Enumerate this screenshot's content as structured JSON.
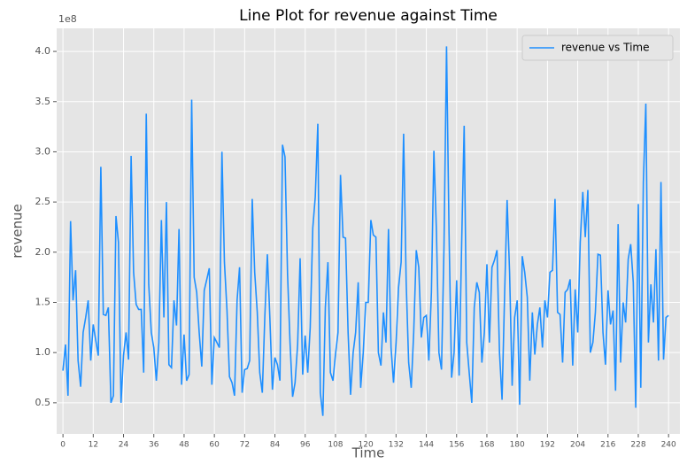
{
  "chart_data": {
    "type": "line",
    "title": "Line Plot for revenue against Time",
    "xlabel": "Time",
    "ylabel": "revenue",
    "y_offset_label": "1e8",
    "x": [
      0,
      1,
      2,
      3,
      4,
      5,
      6,
      7,
      8,
      9,
      10,
      11,
      12,
      13,
      14,
      15,
      16,
      17,
      18,
      19,
      20,
      21,
      22,
      23,
      24,
      25,
      26,
      27,
      28,
      29,
      30,
      31,
      32,
      33,
      34,
      35,
      36,
      37,
      38,
      39,
      40,
      41,
      42,
      43,
      44,
      45,
      46,
      47,
      48,
      49,
      50,
      51,
      52,
      53,
      54,
      55,
      56,
      57,
      58,
      59,
      60,
      61,
      62,
      63,
      64,
      65,
      66,
      67,
      68,
      69,
      70,
      71,
      72,
      73,
      74,
      75,
      76,
      77,
      78,
      79,
      80,
      81,
      82,
      83,
      84,
      85,
      86,
      87,
      88,
      89,
      90,
      91,
      92,
      93,
      94,
      95,
      96,
      97,
      98,
      99,
      100,
      101,
      102,
      103,
      104,
      105,
      106,
      107,
      108,
      109,
      110,
      111,
      112,
      113,
      114,
      115,
      116,
      117,
      118,
      119,
      120,
      121,
      122,
      123,
      124,
      125,
      126,
      127,
      128,
      129,
      130,
      131,
      132,
      133,
      134,
      135,
      136,
      137,
      138,
      139,
      140,
      141,
      142,
      143,
      144,
      145,
      146,
      147,
      148,
      149,
      150,
      151,
      152,
      153,
      154,
      155,
      156,
      157,
      158,
      159,
      160,
      161,
      162,
      163,
      164,
      165,
      166,
      167,
      168,
      169,
      170,
      171,
      172,
      173,
      174,
      175,
      176,
      177,
      178,
      179,
      180,
      181,
      182,
      183,
      184,
      185,
      186,
      187,
      188,
      189,
      190,
      191,
      192,
      193,
      194,
      195,
      196,
      197,
      198,
      199,
      200,
      201,
      202,
      203,
      204,
      205,
      206,
      207,
      208,
      209,
      210,
      211,
      212,
      213,
      214,
      215,
      216,
      217,
      218,
      219,
      220,
      221,
      222,
      223,
      224,
      225,
      226,
      227,
      228,
      229,
      230,
      231,
      232,
      233,
      234,
      235,
      236,
      237,
      238,
      239,
      240
    ],
    "series": [
      {
        "name": "revenue vs Time",
        "color": "#1e8fff",
        "values": [
          0.82,
          1.08,
          0.57,
          2.31,
          1.52,
          1.82,
          0.92,
          0.66,
          1.2,
          1.35,
          1.52,
          0.92,
          1.28,
          1.12,
          0.97,
          2.85,
          1.38,
          1.37,
          1.45,
          0.5,
          0.57,
          2.36,
          2.1,
          0.5,
          0.97,
          1.2,
          0.93,
          2.96,
          1.8,
          1.48,
          1.43,
          1.43,
          0.8,
          3.38,
          1.68,
          1.2,
          1.05,
          0.72,
          1.1,
          2.32,
          1.35,
          2.5,
          0.88,
          0.85,
          1.52,
          1.27,
          2.23,
          0.68,
          1.18,
          0.72,
          0.78,
          3.52,
          1.75,
          1.6,
          1.2,
          0.86,
          1.62,
          1.73,
          1.84,
          0.68,
          1.15,
          1.1,
          1.05,
          3.0,
          1.9,
          1.42,
          0.76,
          0.7,
          0.57,
          1.52,
          1.85,
          0.6,
          0.83,
          0.84,
          0.92,
          2.53,
          1.8,
          1.4,
          0.8,
          0.6,
          1.35,
          1.98,
          1.35,
          0.63,
          0.95,
          0.88,
          0.72,
          3.07,
          2.95,
          1.78,
          1.1,
          0.56,
          0.7,
          1.08,
          1.94,
          0.78,
          1.17,
          0.8,
          1.25,
          2.24,
          2.55,
          3.28,
          0.6,
          0.37,
          1.45,
          1.9,
          0.8,
          0.72,
          0.98,
          1.2,
          2.77,
          2.15,
          2.14,
          1.2,
          0.58,
          1.0,
          1.2,
          1.7,
          0.65,
          1.0,
          1.5,
          1.5,
          2.32,
          2.17,
          2.15,
          1.0,
          0.87,
          1.4,
          1.1,
          2.23,
          1.05,
          0.7,
          1.1,
          1.65,
          1.9,
          3.18,
          1.7,
          0.9,
          0.65,
          1.2,
          2.02,
          1.85,
          1.15,
          1.35,
          1.37,
          0.92,
          1.6,
          3.01,
          2.2,
          1.0,
          0.83,
          2.05,
          4.05,
          2.2,
          0.75,
          1.0,
          1.72,
          0.77,
          2.1,
          3.26,
          1.1,
          0.8,
          0.5,
          1.45,
          1.7,
          1.6,
          0.9,
          1.2,
          1.88,
          1.1,
          1.85,
          1.92,
          2.02,
          1.0,
          0.53,
          1.55,
          2.52,
          1.8,
          0.67,
          1.35,
          1.52,
          0.48,
          1.96,
          1.8,
          1.55,
          0.72,
          1.4,
          0.98,
          1.28,
          1.45,
          1.05,
          1.52,
          1.35,
          1.8,
          1.82,
          2.53,
          1.4,
          1.38,
          0.9,
          1.6,
          1.63,
          1.73,
          0.87,
          1.63,
          1.2,
          2.1,
          2.6,
          2.15,
          2.62,
          1.0,
          1.1,
          1.4,
          1.98,
          1.97,
          1.2,
          0.88,
          1.62,
          1.28,
          1.42,
          0.62,
          2.28,
          0.9,
          1.5,
          1.3,
          1.93,
          2.08,
          1.7,
          0.45,
          2.48,
          0.65,
          2.7,
          3.48,
          1.1,
          1.68,
          1.3,
          2.03,
          0.92,
          2.7,
          0.93,
          1.35,
          1.37
        ]
      }
    ],
    "xlim": [
      -2.5,
      244.5
    ],
    "ylim": [
      0.19,
      4.23
    ],
    "xticks": [
      0,
      12,
      24,
      36,
      48,
      60,
      72,
      84,
      96,
      108,
      120,
      132,
      144,
      156,
      168,
      180,
      192,
      204,
      216,
      228,
      240
    ],
    "yticks": [
      0.5,
      {
        "value": 1,
        "label": "1.0"
      },
      1.5,
      {
        "value": 2,
        "label": "2.0"
      },
      2.5,
      {
        "value": 3,
        "label": "3.0"
      },
      3.5,
      {
        "value": 4,
        "label": "4.0"
      }
    ],
    "grid": true,
    "legend": "upper right"
  }
}
